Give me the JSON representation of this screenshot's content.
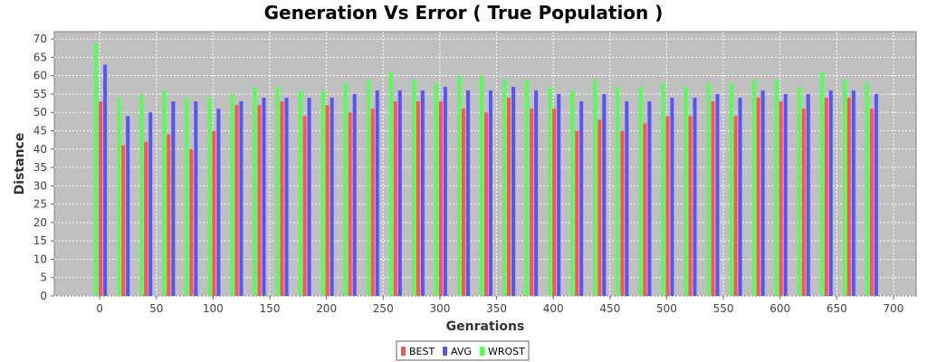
{
  "chart_data": {
    "type": "bar",
    "title": "Generation Vs Error ( True Population )",
    "xlabel": "Genrations",
    "ylabel": "Distance",
    "xlim": [
      -40,
      720
    ],
    "ylim": [
      0,
      72
    ],
    "x_ticks": [
      0,
      50,
      100,
      150,
      200,
      250,
      300,
      350,
      400,
      450,
      500,
      550,
      600,
      650,
      700
    ],
    "y_ticks": [
      0,
      5,
      10,
      15,
      20,
      25,
      30,
      35,
      40,
      45,
      50,
      55,
      60,
      65,
      70
    ],
    "grid": true,
    "legend_position": "bottom",
    "x": [
      0,
      20,
      40,
      60,
      80,
      100,
      120,
      140,
      160,
      180,
      200,
      220,
      240,
      260,
      280,
      300,
      320,
      340,
      360,
      380,
      400,
      420,
      440,
      460,
      480,
      500,
      520,
      540,
      560,
      580,
      600,
      620,
      640,
      660,
      680
    ],
    "series": [
      {
        "name": "BEST",
        "color": "#ff5555",
        "values": [
          53,
          41,
          42,
          44,
          40,
          45,
          52,
          52,
          53,
          49,
          52,
          50,
          51,
          53,
          53,
          53,
          51,
          50,
          54,
          51,
          51,
          45,
          48,
          45,
          47,
          49,
          49,
          53,
          49,
          54,
          53,
          51,
          54,
          54,
          51
        ]
      },
      {
        "name": "AVG",
        "color": "#5555ff",
        "values": [
          63,
          49,
          50,
          53,
          53,
          51,
          53,
          54,
          54,
          54,
          54,
          55,
          56,
          56,
          56,
          57,
          56,
          56,
          57,
          56,
          55,
          53,
          55,
          53,
          53,
          54,
          54,
          55,
          54,
          56,
          55,
          55,
          56,
          56,
          55
        ]
      },
      {
        "name": "WROST",
        "color": "#55ff55",
        "values": [
          69,
          54,
          55,
          56,
          54,
          54,
          55,
          57,
          57,
          56,
          56,
          58,
          59,
          61,
          59,
          58,
          60,
          60,
          59,
          59,
          57,
          56,
          59,
          57,
          57,
          58,
          57,
          58,
          58,
          59,
          59,
          57,
          61,
          59,
          58
        ]
      }
    ]
  }
}
